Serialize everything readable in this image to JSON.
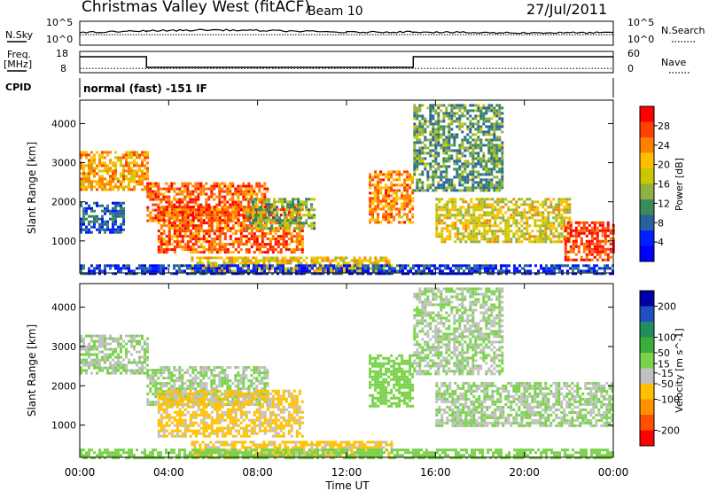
{
  "header": {
    "title": "Christmas Valley West (fitACF)",
    "beam": "Beam 10",
    "date": "27/Jul/2011"
  },
  "params": {
    "nsky_label": "N.Sky",
    "nsearch_label": "N.Search",
    "freq_label": "Freq.",
    "freq_unit": "[MHz]",
    "nave_label": "Nave",
    "cpid_label": "CPID",
    "cpid_value": "normal (fast) -151 IF",
    "noise_ticks_left": [
      "10^5",
      "10^0"
    ],
    "noise_ticks_right": [
      "10^5",
      "10^0"
    ],
    "freq_ticks": [
      "18",
      "8"
    ],
    "nave_ticks": [
      "60",
      "0"
    ]
  },
  "colorbars": {
    "power": {
      "label": "Power [dB]",
      "ticks": [
        "28",
        "24",
        "20",
        "16",
        "12",
        "8",
        "4"
      ],
      "colors": [
        "#ff0000",
        "#ff4000",
        "#ff8000",
        "#ffbf00",
        "#c8c800",
        "#90b040",
        "#3a8a5a",
        "#2860a0",
        "#0020ff",
        "#0000ff"
      ]
    },
    "velocity": {
      "label": "Velocity [m s^-1]",
      "ticks": [
        "200",
        "100",
        "50",
        "15",
        "-15",
        "-50",
        "-100",
        "-200"
      ],
      "colors": [
        "#0000a8",
        "#2050c0",
        "#1f8f5f",
        "#3aae3a",
        "#7ad24a",
        "#c0c0c0",
        "#ffc000",
        "#ff9000",
        "#ff5000",
        "#ff0000"
      ]
    }
  },
  "axes": {
    "xlabel": "Time UT",
    "xticks": [
      "00:00",
      "04:00",
      "08:00",
      "12:00",
      "16:00",
      "20:00",
      "00:00"
    ],
    "ylabel": "Slant Range [km]",
    "yticks": [
      "1000",
      "2000",
      "3000",
      "4000"
    ]
  },
  "chart_data": [
    {
      "type": "heatmap",
      "title": "Power",
      "xlabel": "Time UT",
      "ylabel": "Slant Range [km]",
      "xlim": [
        0,
        24
      ],
      "ylim": [
        180,
        4600
      ],
      "colorbar": {
        "label": "Power [dB]",
        "range": [
          0,
          32
        ],
        "ticks": [
          4,
          8,
          12,
          16,
          20,
          24,
          28
        ]
      },
      "regions": [
        {
          "t": [
            0.0,
            3.0
          ],
          "r": [
            2300,
            3300
          ],
          "value": 22
        },
        {
          "t": [
            0.0,
            2.0
          ],
          "r": [
            1200,
            2000
          ],
          "value": 8
        },
        {
          "t": [
            3.0,
            8.5
          ],
          "r": [
            1500,
            2500
          ],
          "value": 26
        },
        {
          "t": [
            3.5,
            10.0
          ],
          "r": [
            700,
            1900
          ],
          "value": 26
        },
        {
          "t": [
            7.5,
            10.5
          ],
          "r": [
            1300,
            2100
          ],
          "value": 14
        },
        {
          "t": [
            5.0,
            14.0
          ],
          "r": [
            250,
            600
          ],
          "value": 20
        },
        {
          "t": [
            13.0,
            15.0
          ],
          "r": [
            1500,
            2800
          ],
          "value": 24
        },
        {
          "t": [
            15.0,
            19.0
          ],
          "r": [
            2300,
            4500
          ],
          "value": 12
        },
        {
          "t": [
            16.0,
            22.0
          ],
          "r": [
            1000,
            2100
          ],
          "value": 18
        },
        {
          "t": [
            21.8,
            24.0
          ],
          "r": [
            500,
            1500
          ],
          "value": 28
        },
        {
          "t": [
            0.0,
            24.0
          ],
          "r": [
            180,
            400
          ],
          "value": 6
        }
      ]
    },
    {
      "type": "heatmap",
      "title": "Velocity",
      "xlabel": "Time UT",
      "ylabel": "Slant Range [km]",
      "xlim": [
        0,
        24
      ],
      "ylim": [
        180,
        4600
      ],
      "colorbar": {
        "label": "Velocity [m s^-1]",
        "range": [
          -250,
          250
        ],
        "ticks": [
          -200,
          -100,
          -50,
          -15,
          15,
          50,
          100,
          200
        ]
      },
      "regions": [
        {
          "t": [
            0.0,
            3.0
          ],
          "r": [
            2300,
            3300
          ],
          "value": 0
        },
        {
          "t": [
            3.0,
            8.5
          ],
          "r": [
            1500,
            2500
          ],
          "value": 0
        },
        {
          "t": [
            3.5,
            10.0
          ],
          "r": [
            700,
            1900
          ],
          "value": -60
        },
        {
          "t": [
            5.0,
            14.0
          ],
          "r": [
            250,
            600
          ],
          "value": -60
        },
        {
          "t": [
            13.0,
            15.0
          ],
          "r": [
            1500,
            2800
          ],
          "value": 20
        },
        {
          "t": [
            15.0,
            19.0
          ],
          "r": [
            2300,
            4500
          ],
          "value": 0
        },
        {
          "t": [
            16.0,
            24.0
          ],
          "r": [
            1000,
            2100
          ],
          "value": 0
        },
        {
          "t": [
            0.0,
            24.0
          ],
          "r": [
            180,
            400
          ],
          "value": 30
        }
      ]
    },
    {
      "type": "line",
      "title": "Noise",
      "series": [
        {
          "name": "N.Sky",
          "x": [
            0,
            3,
            6,
            9,
            12,
            15,
            18,
            21,
            24
          ],
          "y": [
            2.6,
            3.0,
            3.2,
            3.0,
            2.7,
            2.8,
            2.6,
            2.6,
            2.6
          ]
        }
      ]
    },
    {
      "type": "line",
      "title": "Freq",
      "ylim": [
        8,
        18
      ],
      "series": [
        {
          "name": "Freq.",
          "x": [
            0,
            3.0,
            3.0,
            15.0,
            15.0,
            24
          ],
          "y": [
            15.5,
            15.5,
            10.5,
            10.5,
            15.5,
            15.5
          ]
        },
        {
          "name": "Nave",
          "x": [
            0,
            24
          ],
          "y": [
            10,
            10
          ]
        }
      ]
    }
  ]
}
